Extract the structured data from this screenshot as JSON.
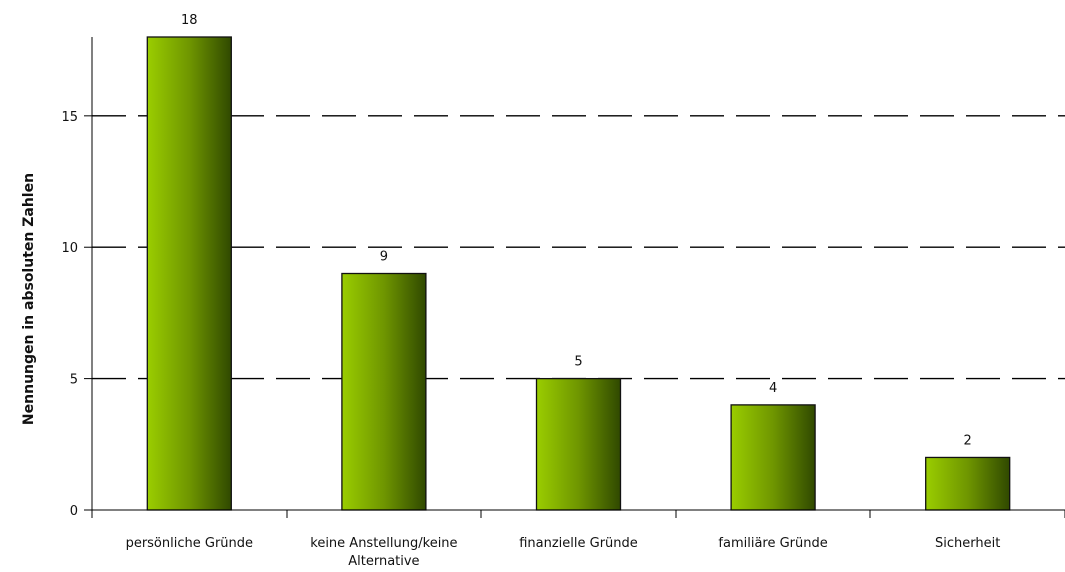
{
  "chart_data": {
    "type": "bar",
    "categories": [
      [
        "persönliche Gründe"
      ],
      [
        "keine Anstellung/keine",
        "Alternative"
      ],
      [
        "finanzielle Gründe"
      ],
      [
        "familiäre Gründe"
      ],
      [
        "Sicherheit"
      ]
    ],
    "values": [
      18,
      9,
      5,
      4,
      2
    ],
    "data_labels": [
      "18",
      "9",
      "5",
      "4",
      "2"
    ],
    "ylabel": "Nennungen in absoluten Zahlen",
    "xlabel": "",
    "ylim": [
      0,
      18
    ],
    "y_ticks": [
      0,
      5,
      10,
      15
    ],
    "grid": "dashed horizontal at 5, 10, 15",
    "bar_gradient": [
      "#9acd00",
      "#6f9600",
      "#304900"
    ]
  }
}
